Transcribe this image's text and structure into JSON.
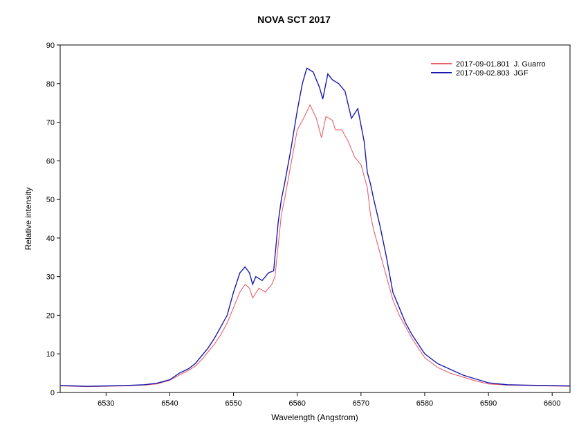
{
  "chart_data": {
    "type": "line",
    "title": "NOVA SCT 2017",
    "xlabel": "Wavelength (Angstrom)",
    "ylabel": "Relative intensity",
    "xlim": [
      6522.8,
      6602.8
    ],
    "ylim": [
      0,
      90
    ],
    "xticks": [
      6530,
      6540,
      6550,
      6560,
      6570,
      6580,
      6590,
      6600
    ],
    "yticks": [
      0,
      10,
      20,
      30,
      40,
      50,
      60,
      70,
      80,
      90
    ],
    "grid": false,
    "legend_position": "top-right",
    "series": [
      {
        "name": "2017-09-01.801  J. Guarro",
        "color": "#e8606c",
        "points": [
          [
            6522.8,
            1.7
          ],
          [
            6525,
            1.6
          ],
          [
            6527,
            1.5
          ],
          [
            6530,
            1.6
          ],
          [
            6533,
            1.7
          ],
          [
            6536,
            1.9
          ],
          [
            6538,
            2.2
          ],
          [
            6540,
            3.2
          ],
          [
            6541.5,
            4.5
          ],
          [
            6543,
            5.8
          ],
          [
            6544,
            6.8
          ],
          [
            6545,
            8.5
          ],
          [
            6546,
            10.5
          ],
          [
            6547,
            12.5
          ],
          [
            6548,
            15
          ],
          [
            6549,
            18
          ],
          [
            6550,
            22
          ],
          [
            6551,
            26
          ],
          [
            6551.8,
            28
          ],
          [
            6552.5,
            27
          ],
          [
            6553,
            24.5
          ],
          [
            6554,
            27
          ],
          [
            6555,
            26
          ],
          [
            6556,
            28
          ],
          [
            6556.5,
            30
          ],
          [
            6557,
            38
          ],
          [
            6557.5,
            46
          ],
          [
            6558,
            50
          ],
          [
            6559,
            59
          ],
          [
            6560,
            68
          ],
          [
            6561,
            71
          ],
          [
            6562,
            74.5
          ],
          [
            6563,
            71
          ],
          [
            6563.8,
            66
          ],
          [
            6564.5,
            71.5
          ],
          [
            6565.5,
            70.5
          ],
          [
            6566,
            68
          ],
          [
            6567,
            68
          ],
          [
            6568,
            65
          ],
          [
            6569,
            61
          ],
          [
            6570,
            59
          ],
          [
            6571,
            53
          ],
          [
            6571.5,
            46
          ],
          [
            6572,
            42
          ],
          [
            6573,
            36
          ],
          [
            6574,
            30
          ],
          [
            6575,
            24
          ],
          [
            6576,
            20
          ],
          [
            6577,
            17
          ],
          [
            6578,
            14
          ],
          [
            6579,
            11.5
          ],
          [
            6580,
            9
          ],
          [
            6582,
            6.5
          ],
          [
            6584,
            5
          ],
          [
            6586,
            4
          ],
          [
            6588,
            3
          ],
          [
            6590,
            2.2
          ],
          [
            6593,
            1.9
          ],
          [
            6596,
            1.8
          ],
          [
            6599,
            1.7
          ],
          [
            6602.8,
            1.6
          ]
        ]
      },
      {
        "name": "2017-09-02.803  JGF",
        "color": "#1a1ab0",
        "points": [
          [
            6522.8,
            1.8
          ],
          [
            6525,
            1.7
          ],
          [
            6527,
            1.6
          ],
          [
            6530,
            1.7
          ],
          [
            6533,
            1.8
          ],
          [
            6536,
            2
          ],
          [
            6538,
            2.4
          ],
          [
            6540,
            3.3
          ],
          [
            6541.5,
            5
          ],
          [
            6543,
            6.2
          ],
          [
            6544,
            7.5
          ],
          [
            6545,
            9.5
          ],
          [
            6546,
            11.5
          ],
          [
            6547,
            14
          ],
          [
            6548,
            17
          ],
          [
            6549,
            20
          ],
          [
            6550,
            26
          ],
          [
            6551,
            31
          ],
          [
            6551.8,
            32.5
          ],
          [
            6552.5,
            31
          ],
          [
            6553,
            28
          ],
          [
            6553.5,
            30
          ],
          [
            6554.5,
            29
          ],
          [
            6555.5,
            31
          ],
          [
            6556.3,
            31.5
          ],
          [
            6557,
            44
          ],
          [
            6557.5,
            50
          ],
          [
            6558,
            54
          ],
          [
            6559,
            63
          ],
          [
            6560,
            73
          ],
          [
            6560.8,
            80
          ],
          [
            6561.5,
            84
          ],
          [
            6562.5,
            83
          ],
          [
            6563.5,
            79
          ],
          [
            6564,
            76
          ],
          [
            6564.8,
            82.5
          ],
          [
            6565.5,
            81
          ],
          [
            6566.5,
            80
          ],
          [
            6567.5,
            78
          ],
          [
            6568.5,
            71
          ],
          [
            6569.5,
            73.5
          ],
          [
            6570.5,
            65
          ],
          [
            6571,
            57
          ],
          [
            6571.5,
            54
          ],
          [
            6572,
            50
          ],
          [
            6573,
            43
          ],
          [
            6574,
            35
          ],
          [
            6575,
            26
          ],
          [
            6576,
            22
          ],
          [
            6577,
            18
          ],
          [
            6578,
            15
          ],
          [
            6579,
            12.5
          ],
          [
            6580,
            10
          ],
          [
            6582,
            7.5
          ],
          [
            6584,
            6
          ],
          [
            6586,
            4.5
          ],
          [
            6588,
            3.5
          ],
          [
            6590,
            2.5
          ],
          [
            6593,
            2
          ],
          [
            6596,
            1.9
          ],
          [
            6599,
            1.8
          ],
          [
            6602.8,
            1.7
          ]
        ]
      }
    ]
  }
}
